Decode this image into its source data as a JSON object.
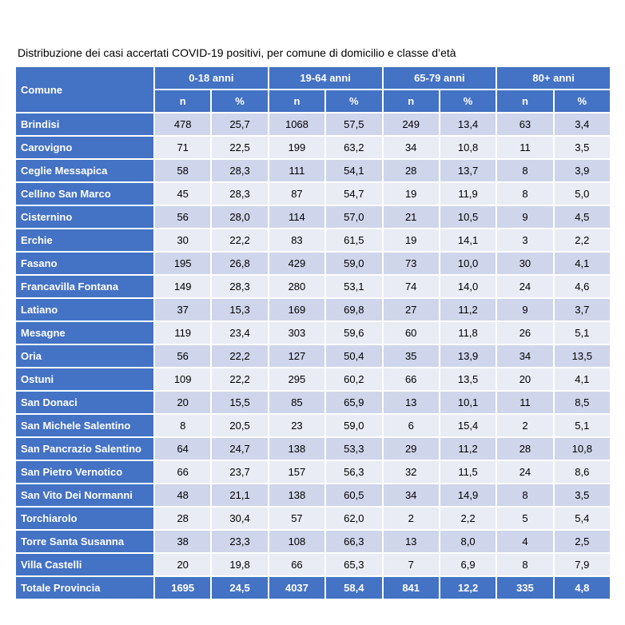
{
  "title": "Distribuzione dei casi accertati COVID-19 positivi, per comune di domicilio e classe d’età",
  "header": {
    "comune": "Comune",
    "groups": [
      "0-18 anni",
      "19-64 anni",
      "65-79 anni",
      "80+ anni"
    ],
    "sub": [
      "n",
      "%",
      "n",
      "%",
      "n",
      "%",
      "n",
      "%"
    ]
  },
  "rows": [
    {
      "name": "Brindisi",
      "v": [
        "478",
        "25,7",
        "1068",
        "57,5",
        "249",
        "13,4",
        "63",
        "3,4"
      ]
    },
    {
      "name": "Carovigno",
      "v": [
        "71",
        "22,5",
        "199",
        "63,2",
        "34",
        "10,8",
        "11",
        "3,5"
      ]
    },
    {
      "name": "Ceglie Messapica",
      "v": [
        "58",
        "28,3",
        "111",
        "54,1",
        "28",
        "13,7",
        "8",
        "3,9"
      ]
    },
    {
      "name": "Cellino San Marco",
      "v": [
        "45",
        "28,3",
        "87",
        "54,7",
        "19",
        "11,9",
        "8",
        "5,0"
      ]
    },
    {
      "name": "Cisternino",
      "v": [
        "56",
        "28,0",
        "114",
        "57,0",
        "21",
        "10,5",
        "9",
        "4,5"
      ]
    },
    {
      "name": "Erchie",
      "v": [
        "30",
        "22,2",
        "83",
        "61,5",
        "19",
        "14,1",
        "3",
        "2,2"
      ]
    },
    {
      "name": "Fasano",
      "v": [
        "195",
        "26,8",
        "429",
        "59,0",
        "73",
        "10,0",
        "30",
        "4,1"
      ]
    },
    {
      "name": "Francavilla Fontana",
      "v": [
        "149",
        "28,3",
        "280",
        "53,1",
        "74",
        "14,0",
        "24",
        "4,6"
      ]
    },
    {
      "name": "Latiano",
      "v": [
        "37",
        "15,3",
        "169",
        "69,8",
        "27",
        "11,2",
        "9",
        "3,7"
      ]
    },
    {
      "name": "Mesagne",
      "v": [
        "119",
        "23,4",
        "303",
        "59,6",
        "60",
        "11,8",
        "26",
        "5,1"
      ]
    },
    {
      "name": "Oria",
      "v": [
        "56",
        "22,2",
        "127",
        "50,4",
        "35",
        "13,9",
        "34",
        "13,5"
      ]
    },
    {
      "name": "Ostuni",
      "v": [
        "109",
        "22,2",
        "295",
        "60,2",
        "66",
        "13,5",
        "20",
        "4,1"
      ]
    },
    {
      "name": "San Donaci",
      "v": [
        "20",
        "15,5",
        "85",
        "65,9",
        "13",
        "10,1",
        "11",
        "8,5"
      ]
    },
    {
      "name": "San Michele Salentino",
      "v": [
        "8",
        "20,5",
        "23",
        "59,0",
        "6",
        "15,4",
        "2",
        "5,1"
      ]
    },
    {
      "name": "San Pancrazio Salentino",
      "v": [
        "64",
        "24,7",
        "138",
        "53,3",
        "29",
        "11,2",
        "28",
        "10,8"
      ]
    },
    {
      "name": "San Pietro Vernotico",
      "v": [
        "66",
        "23,7",
        "157",
        "56,3",
        "32",
        "11,5",
        "24",
        "8,6"
      ]
    },
    {
      "name": "San Vito Dei Normanni",
      "v": [
        "48",
        "21,1",
        "138",
        "60,5",
        "34",
        "14,9",
        "8",
        "3,5"
      ]
    },
    {
      "name": "Torchiarolo",
      "v": [
        "28",
        "30,4",
        "57",
        "62,0",
        "2",
        "2,2",
        "5",
        "5,4"
      ]
    },
    {
      "name": "Torre Santa Susanna",
      "v": [
        "38",
        "23,3",
        "108",
        "66,3",
        "13",
        "8,0",
        "4",
        "2,5"
      ]
    },
    {
      "name": "Villa Castelli",
      "v": [
        "20",
        "19,8",
        "66",
        "65,3",
        "7",
        "6,9",
        "8",
        "7,9"
      ]
    }
  ],
  "total": {
    "name": "Totale Provincia",
    "v": [
      "1695",
      "24,5",
      "4037",
      "58,4",
      "841",
      "12,2",
      "335",
      "4,8"
    ]
  }
}
